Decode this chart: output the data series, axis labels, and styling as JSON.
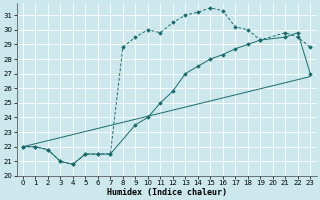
{
  "xlabel": "Humidex (Indice chaleur)",
  "xlim": [
    -0.5,
    23.5
  ],
  "ylim": [
    20,
    31.8
  ],
  "xticks": [
    0,
    1,
    2,
    3,
    4,
    5,
    6,
    7,
    8,
    9,
    10,
    11,
    12,
    13,
    14,
    15,
    16,
    17,
    18,
    19,
    20,
    21,
    22,
    23
  ],
  "yticks": [
    20,
    21,
    22,
    23,
    24,
    25,
    26,
    27,
    28,
    29,
    30,
    31
  ],
  "background_color": "#cce8ec",
  "grid_color": "#ffffff",
  "line_color": "#1a6b6b",
  "curve1_x": [
    0,
    1,
    2,
    3,
    4,
    5,
    6,
    7,
    8,
    9,
    10,
    11,
    12,
    13,
    14,
    15,
    16,
    17,
    18,
    19,
    21,
    22,
    23
  ],
  "curve1_y": [
    22.0,
    22.0,
    21.8,
    21.0,
    20.8,
    21.5,
    21.5,
    21.5,
    28.8,
    29.5,
    30.0,
    29.8,
    30.5,
    31.0,
    31.2,
    31.5,
    31.3,
    30.2,
    30.0,
    29.3,
    29.8,
    29.5,
    28.8
  ],
  "curve2_x": [
    0,
    1,
    2,
    3,
    4,
    5,
    6,
    7,
    9,
    10,
    11,
    12,
    13,
    14,
    15,
    16,
    17,
    18,
    19,
    21,
    22,
    23
  ],
  "curve2_y": [
    22.0,
    22.0,
    21.8,
    21.0,
    20.8,
    21.5,
    21.5,
    21.5,
    23.5,
    24.0,
    25.0,
    25.8,
    27.0,
    27.5,
    28.0,
    28.3,
    28.7,
    29.0,
    29.3,
    29.5,
    29.8,
    27.0
  ],
  "curve3_x": [
    0,
    23
  ],
  "curve3_y": [
    22.0,
    26.8
  ]
}
